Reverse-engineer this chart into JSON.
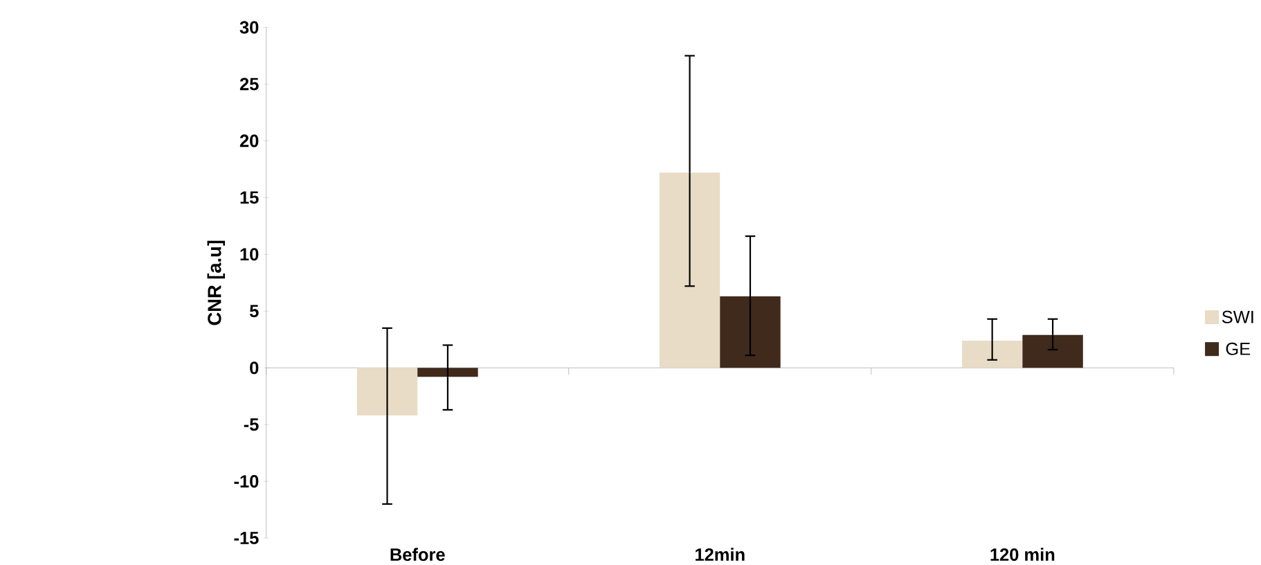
{
  "chart_data": {
    "type": "bar",
    "ylabel": "CNR [a.u]",
    "categories": [
      "Before",
      "12min",
      "120 min"
    ],
    "series": [
      {
        "name": "SWI",
        "color": "#e8dcc6",
        "values": [
          -4.2,
          17.2,
          2.4
        ],
        "errors": [
          [
            -12,
            3.5
          ],
          [
            7.2,
            27.5
          ],
          [
            0.7,
            4.3
          ]
        ]
      },
      {
        "name": "GE",
        "color": "#3f2a1c",
        "values": [
          -0.8,
          6.3,
          2.9
        ],
        "errors": [
          [
            -3.7,
            2.0
          ],
          [
            1.1,
            11.6
          ],
          [
            1.6,
            4.3
          ]
        ]
      }
    ],
    "ylim": [
      -15,
      30
    ],
    "yticks": [
      -15,
      -10,
      -5,
      0,
      5,
      10,
      15,
      20,
      25,
      30
    ],
    "legend": "right"
  }
}
